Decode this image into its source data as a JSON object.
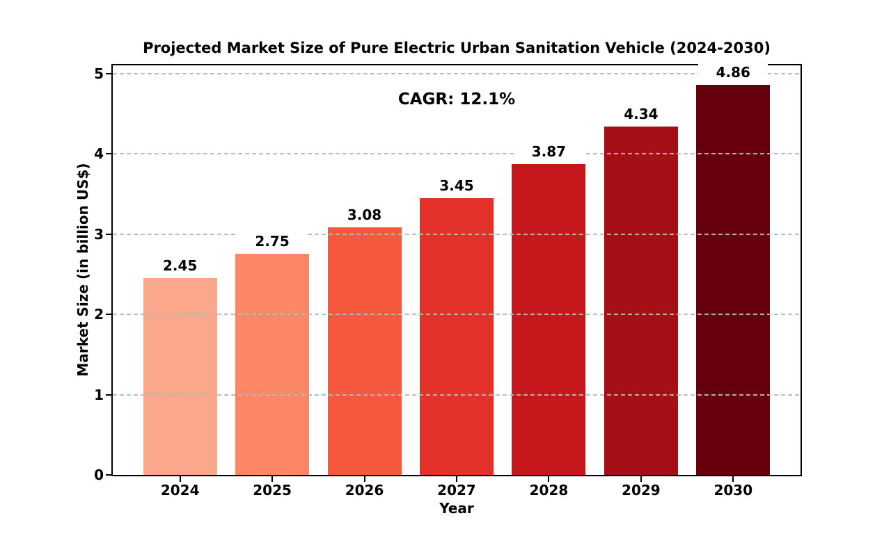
{
  "chart_data": {
    "type": "bar",
    "title": "Projected Market Size of Pure Electric Urban Sanitation Vehicle (2024-2030)",
    "annotation": "CAGR: 12.1%",
    "xlabel": "Year",
    "ylabel": "Market Size (in billion US$)",
    "categories": [
      "2024",
      "2025",
      "2026",
      "2027",
      "2028",
      "2029",
      "2030"
    ],
    "values": [
      2.45,
      2.75,
      3.08,
      3.45,
      3.87,
      4.34,
      4.86
    ],
    "value_labels": [
      "2.45",
      "2.75",
      "3.08",
      "3.45",
      "3.87",
      "4.34",
      "4.86"
    ],
    "bar_colors": [
      "#FBA78C",
      "#FB8767",
      "#F6583E",
      "#E4312A",
      "#C5171C",
      "#A50F15",
      "#67000D"
    ],
    "ylim": [
      0,
      5
    ],
    "yticks": [
      0,
      1,
      2,
      3,
      4,
      5
    ],
    "grid": "horizontal-dashed",
    "grid_color": "#b9b9b9",
    "legend": "none"
  }
}
